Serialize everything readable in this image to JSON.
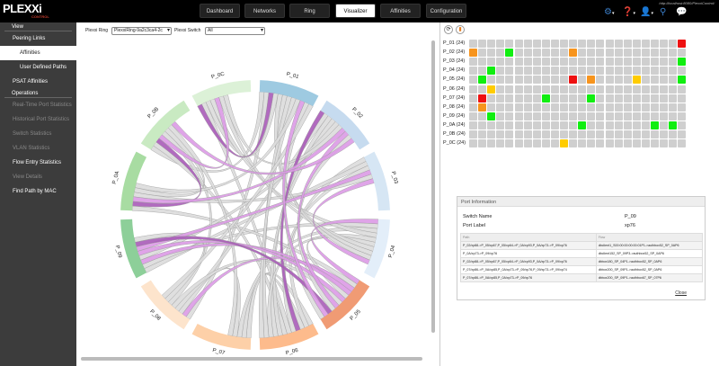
{
  "header": {
    "logo": "PLEXXi",
    "logo_sub": "CONTROL",
    "url": "http://localhost:8080/PlexxiControl/",
    "nav": [
      "Dashboard",
      "Networks",
      "Ring",
      "Visualizer",
      "Affinities",
      "Configuration"
    ],
    "active_nav": "Visualizer",
    "icons": [
      "gear-icon",
      "help-icon",
      "user-icon",
      "search-icon",
      "chat-icon"
    ]
  },
  "sidebar": {
    "sections": [
      {
        "title": "View",
        "items": [
          {
            "label": "Peering Links",
            "state": "normal"
          },
          {
            "label": "Affinities",
            "state": "active",
            "sub": true
          },
          {
            "label": "User Defined Paths",
            "state": "normal",
            "sub": true
          },
          {
            "label": "PSAT Affinities",
            "state": "normal"
          }
        ]
      },
      {
        "title": "Operations",
        "items": [
          {
            "label": "Real-Time Port Statistics",
            "state": "dim"
          },
          {
            "label": "Historical Port Statistics",
            "state": "dim"
          },
          {
            "label": "Switch Statistics",
            "state": "dim"
          },
          {
            "label": "VLAN Statistics",
            "state": "dim"
          },
          {
            "label": "Flow Entry Statistics",
            "state": "normal"
          },
          {
            "label": "View Details",
            "state": "dim"
          },
          {
            "label": "Find Path by MAC",
            "state": "normal"
          }
        ]
      }
    ]
  },
  "controls": {
    "ring_label": "Plexxi Ring",
    "ring_value": "PlexxiRing-9a2c3ca4-2c",
    "switch_label": "Plexxi Switch",
    "switch_value": "All"
  },
  "chord": {
    "groups": [
      "P_01",
      "P_02",
      "P_03",
      "P_04",
      "P_05",
      "P_06",
      "P_07",
      "P_08",
      "P_09",
      "P_0A",
      "P_0B",
      "P_0C"
    ],
    "colors": [
      "#9ecae1",
      "#c6dbef",
      "#d6e6f4",
      "#e3eef9",
      "#f09b74",
      "#fdbb8c",
      "#fdd0a8",
      "#fde4cc",
      "#8dcf99",
      "#a8dca2",
      "#c9eac2",
      "#dcf1d7"
    ],
    "chord_colors": {
      "default": "#dcdcdc",
      "affinity": "#dc9ae6",
      "affinity_dark": "#a85bb8"
    }
  },
  "heatmap": {
    "rows": [
      "P_01 (24)",
      "P_02 (24)",
      "P_03 (24)",
      "P_04 (24)",
      "P_05 (24)",
      "P_06 (24)",
      "P_07 (24)",
      "P_08 (24)",
      "P_09 (24)",
      "P_0A (24)",
      "P_0B (24)",
      "P_0C (24)"
    ],
    "columns": 24,
    "colors": {
      "empty": "#cfcfcf",
      "green": "#11ee11",
      "red": "#ee1111",
      "orange": "#f7941d",
      "yellow": "#ffcc00"
    },
    "marks": [
      [
        0,
        23,
        "red"
      ],
      [
        1,
        0,
        "orange"
      ],
      [
        1,
        4,
        "green"
      ],
      [
        1,
        11,
        "orange"
      ],
      [
        2,
        23,
        "green"
      ],
      [
        3,
        2,
        "green"
      ],
      [
        4,
        1,
        "green"
      ],
      [
        4,
        11,
        "red"
      ],
      [
        4,
        13,
        "orange"
      ],
      [
        4,
        18,
        "yellow"
      ],
      [
        4,
        23,
        "green"
      ],
      [
        5,
        2,
        "yellow"
      ],
      [
        6,
        1,
        "red"
      ],
      [
        6,
        8,
        "green"
      ],
      [
        6,
        13,
        "green"
      ],
      [
        7,
        1,
        "orange"
      ],
      [
        8,
        2,
        "green"
      ],
      [
        9,
        12,
        "green"
      ],
      [
        9,
        20,
        "green"
      ],
      [
        9,
        22,
        "green"
      ],
      [
        11,
        10,
        "yellow"
      ]
    ],
    "buttons": [
      "refresh-icon",
      "chart-icon"
    ]
  },
  "port_info": {
    "title": "Port Information",
    "switch_name_label": "Switch Name",
    "switch_name": "P_09",
    "port_label_label": "Port Label",
    "port_label": "xp76",
    "columns": [
      "Path",
      "Flow"
    ],
    "rows": [
      [
        "P_02/xp88->P_05/xp67,P_05/xp64->P_0A/xp93,P_0A/xp73->P_09/xp76",
        "dbclient1_S00:00:00:00:00:01P1->authbox52_SP_0AP6"
      ],
      [
        "P_0A/xp73->P_09/xp76",
        "dbclient152_SP_09P3->authbox52_SP_0AP6"
      ],
      [
        "P_02/xp88->P_05/xp67,P_05/xp64->P_0A/xp93,P_0A/xp73->P_09/xp76",
        "dbbox180_SP_04P1->authbox52_SP_0AP6"
      ],
      [
        "P_07/xp86->P_0A/xp85,P_0A/xp73->P_09/xp76,P_09/xp73->P_09/xp74",
        "dbbox200_SP_09P1->authbox52_SP_0AP6"
      ],
      [
        "P_07/xp86->P_0A/xp85,P_0A/xp73->P_09/xp76",
        "dbbox200_SP_09P1->authbox67_SP_07P6"
      ]
    ],
    "close": "Close"
  }
}
